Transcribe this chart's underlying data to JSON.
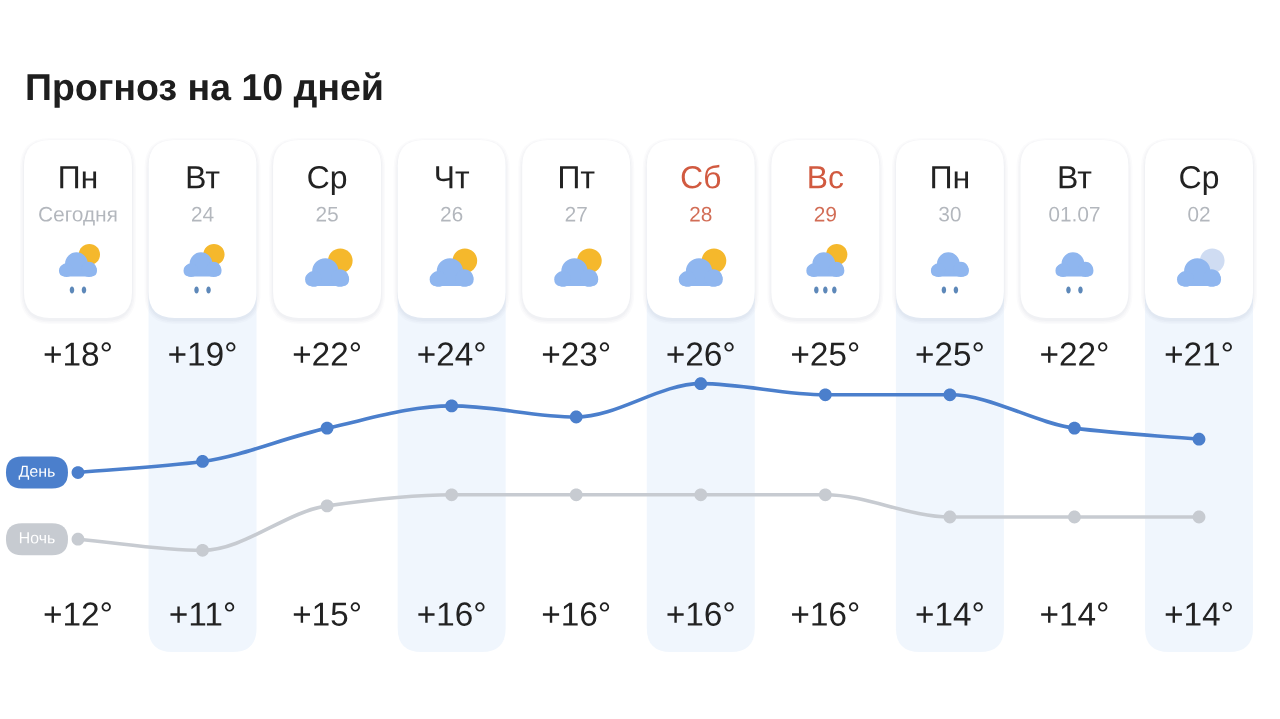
{
  "chart_data": {
    "type": "line",
    "title": "Прогноз на 10 дней",
    "categories": [
      "Пн\nСегодня",
      "Вт\n24",
      "Ср\n25",
      "Чт\n26",
      "Пт\n27",
      "Сб\n28",
      "Вс\n29",
      "Пн\n30",
      "Вт\n01.07",
      "Ср\n02"
    ],
    "series": [
      {
        "name": "День",
        "color": "#4b7fcc",
        "values": [
          18,
          19,
          22,
          24,
          23,
          26,
          25,
          25,
          22,
          21
        ],
        "value_labels": [
          "+18°",
          "+19°",
          "+22°",
          "+24°",
          "+23°",
          "+26°",
          "+25°",
          "+25°",
          "+22°",
          "+21°"
        ]
      },
      {
        "name": "Ночь",
        "color": "#c7cbd1",
        "values": [
          12,
          11,
          15,
          16,
          16,
          16,
          16,
          14,
          14,
          14
        ],
        "value_labels": [
          "+12°",
          "+11°",
          "+15°",
          "+16°",
          "+16°",
          "+16°",
          "+16°",
          "+14°",
          "+14°",
          "+14°"
        ]
      }
    ],
    "marker": "circle",
    "line_style": "solid"
  }
}
